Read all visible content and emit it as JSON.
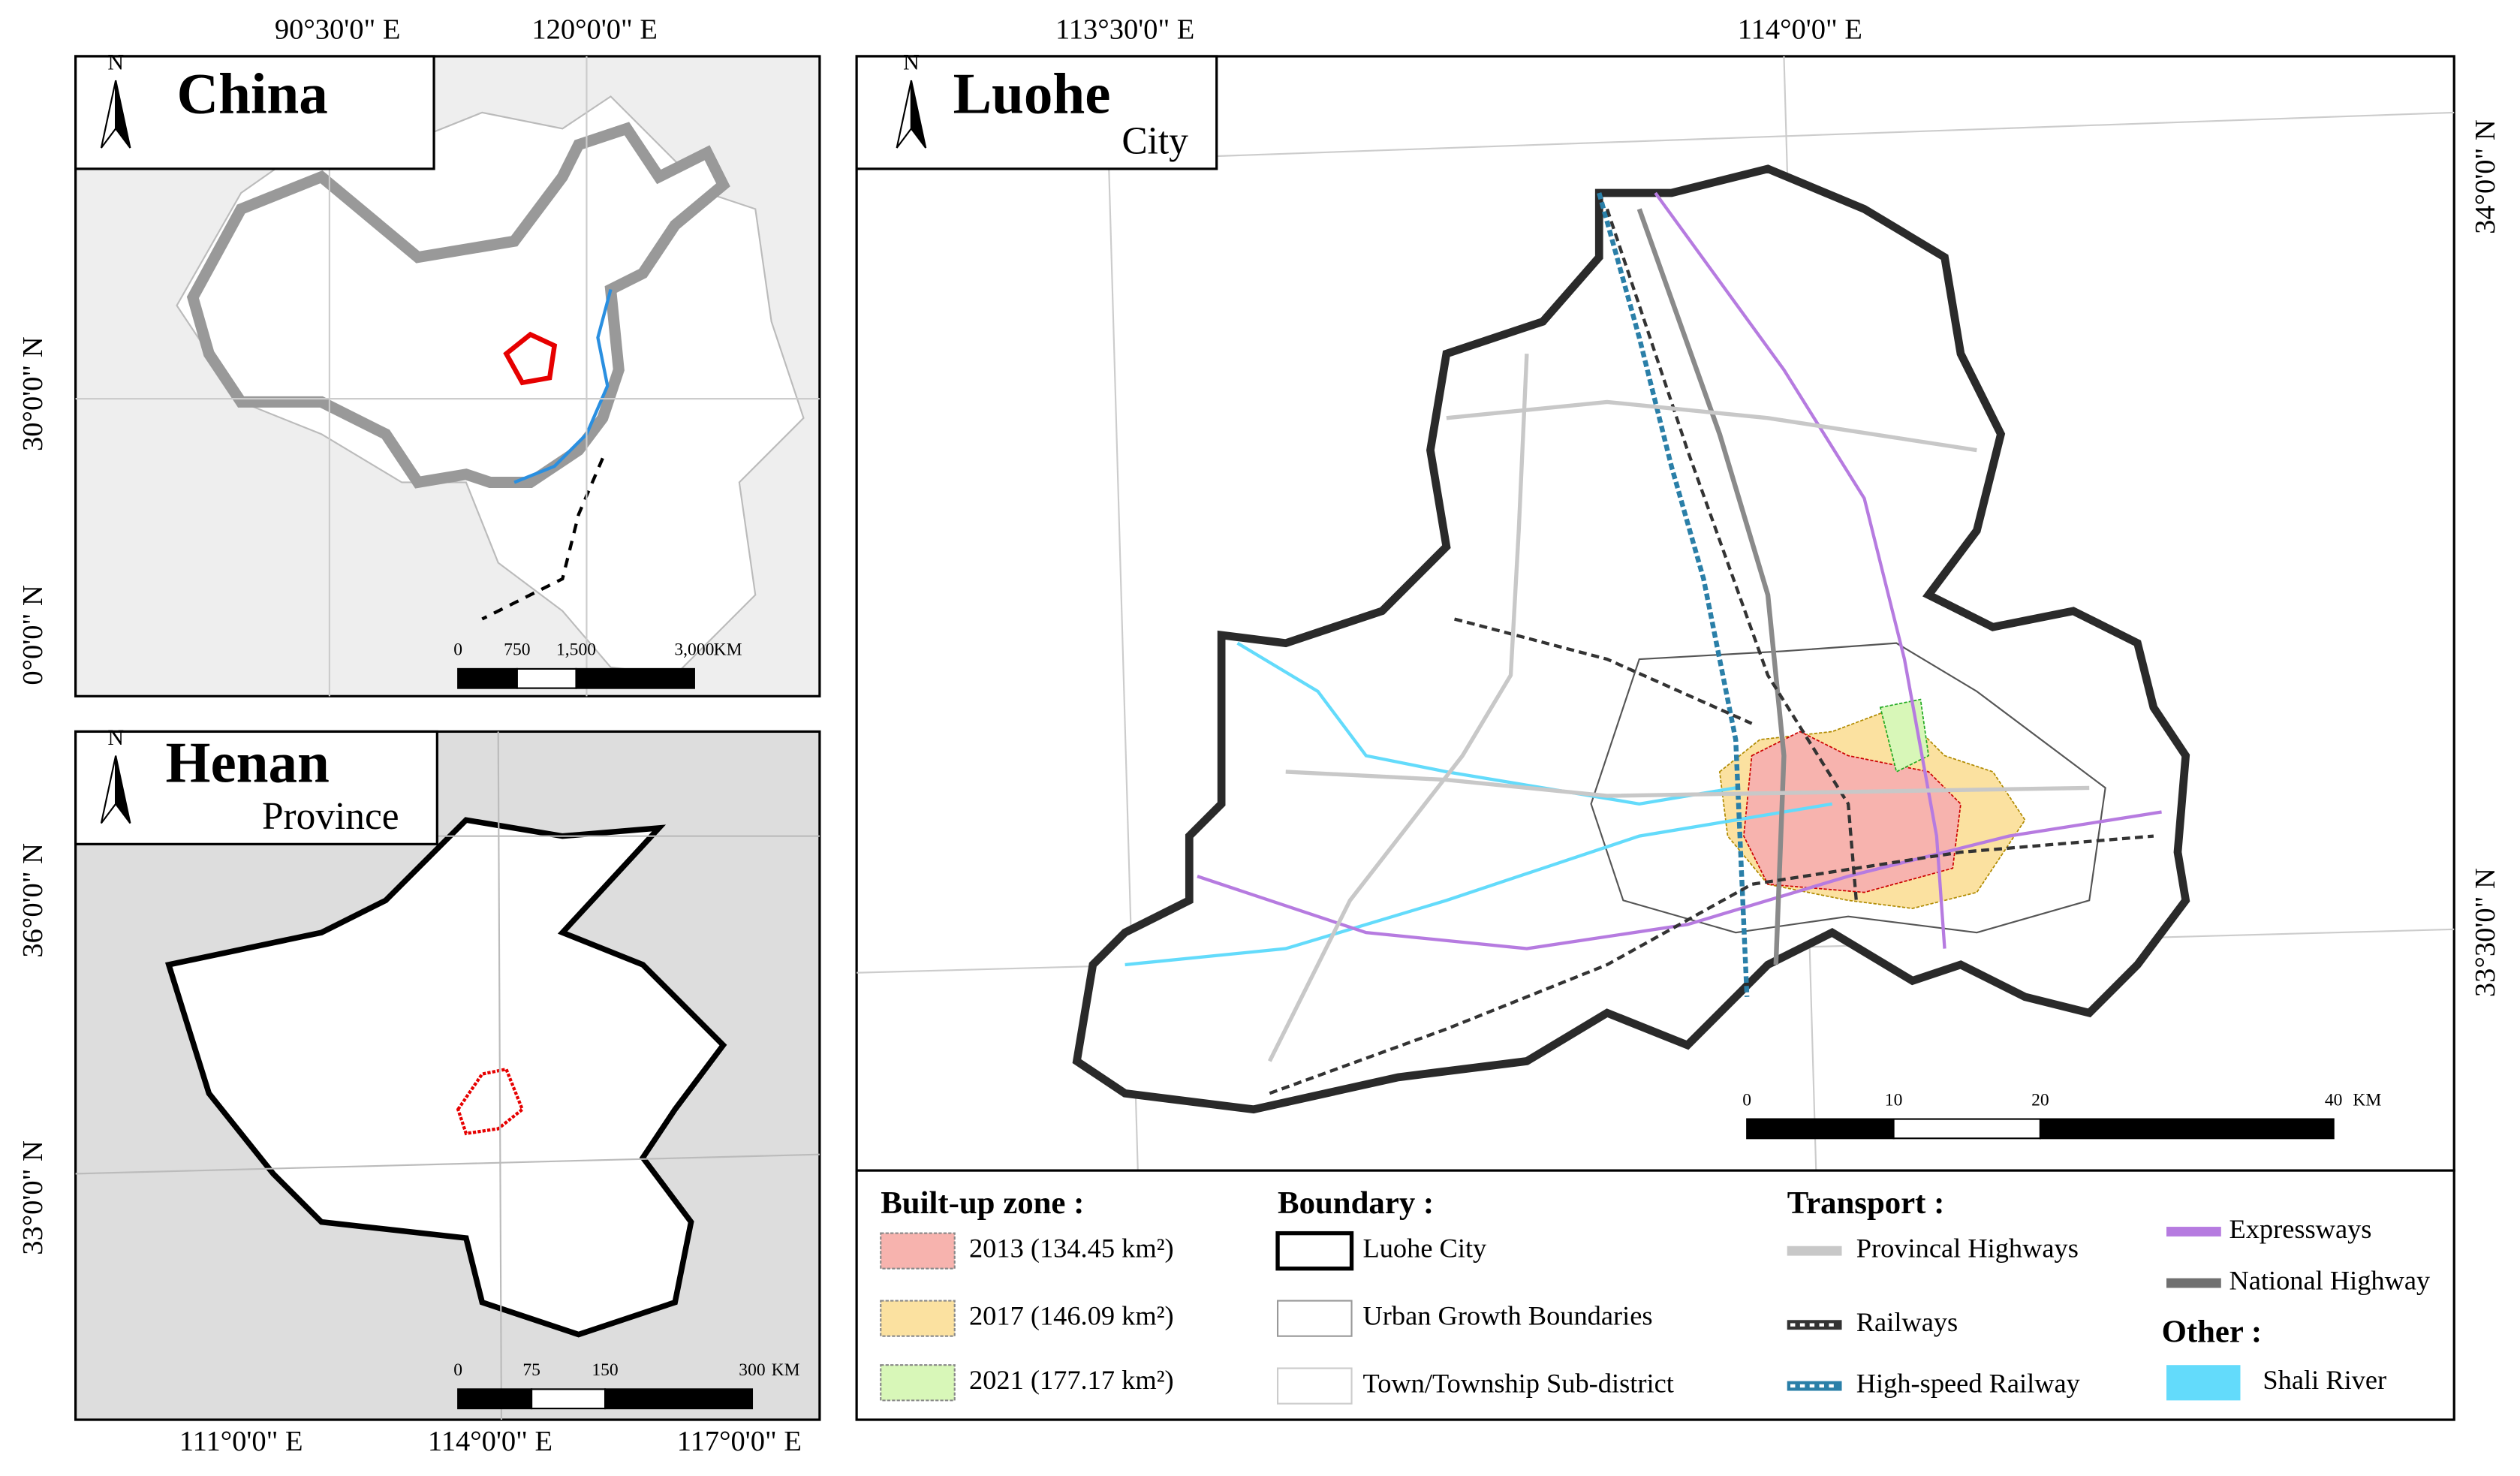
{
  "panels": {
    "china": {
      "title": "China",
      "north": "N",
      "x_labels": [
        "90°30'0\" E",
        "120°0'0\" E"
      ],
      "y_labels": [
        "30°0'0\" N",
        "0°0'0\" N"
      ],
      "scale": [
        "0",
        "750",
        "1,500",
        "3,000"
      ],
      "unit": "KM"
    },
    "henan": {
      "title": "Henan",
      "subtitle": "Province",
      "north": "N",
      "x_labels": [
        "111°0'0\" E",
        "114°0'0\" E",
        "117°0'0\" E"
      ],
      "y_labels": [
        "36°0'0\" N",
        "33°0'0\" N"
      ],
      "scale": [
        "0",
        "75",
        "150",
        "300"
      ],
      "unit": "KM"
    },
    "luohe": {
      "title": "Luohe",
      "subtitle": "City",
      "north": "N",
      "x_labels": [
        "113°30'0\" E",
        "114°0'0\" E"
      ],
      "y_labels": [
        "34°0'0\" N",
        "33°30'0\" N"
      ],
      "scale": [
        "0",
        "10",
        "20",
        "40"
      ],
      "unit": "KM"
    }
  },
  "legend": {
    "built_up": {
      "title": "Built-up zone :",
      "items": [
        {
          "label": "2013 (134.45 km²)",
          "color": "#f7b3ae"
        },
        {
          "label": "2017 (146.09 km²)",
          "color": "#fbe1a0"
        },
        {
          "label": "2021 (177.17 km²)",
          "color": "#d8f7b8"
        }
      ]
    },
    "boundary": {
      "title": "Boundary :",
      "items": [
        {
          "label": "Luohe City",
          "color": "#000000"
        },
        {
          "label": "Urban Growth Boundaries",
          "color": "#999999"
        },
        {
          "label": "Town/Township Sub-district",
          "color": "#cccccc"
        }
      ]
    },
    "transport": {
      "title": "Transport :",
      "items": [
        {
          "label": "Provincal Highways",
          "color": "#c8c8c8"
        },
        {
          "label": "Railways",
          "color": "#333333"
        },
        {
          "label": "High-speed Railway",
          "color": "#2a7fa8"
        },
        {
          "label": "Expressways",
          "color": "#b67be0"
        },
        {
          "label": "National Highway",
          "color": "#707070"
        }
      ]
    },
    "other": {
      "title": "Other :",
      "items": [
        {
          "label": "Shali River",
          "color": "#63dbfb"
        }
      ]
    }
  }
}
